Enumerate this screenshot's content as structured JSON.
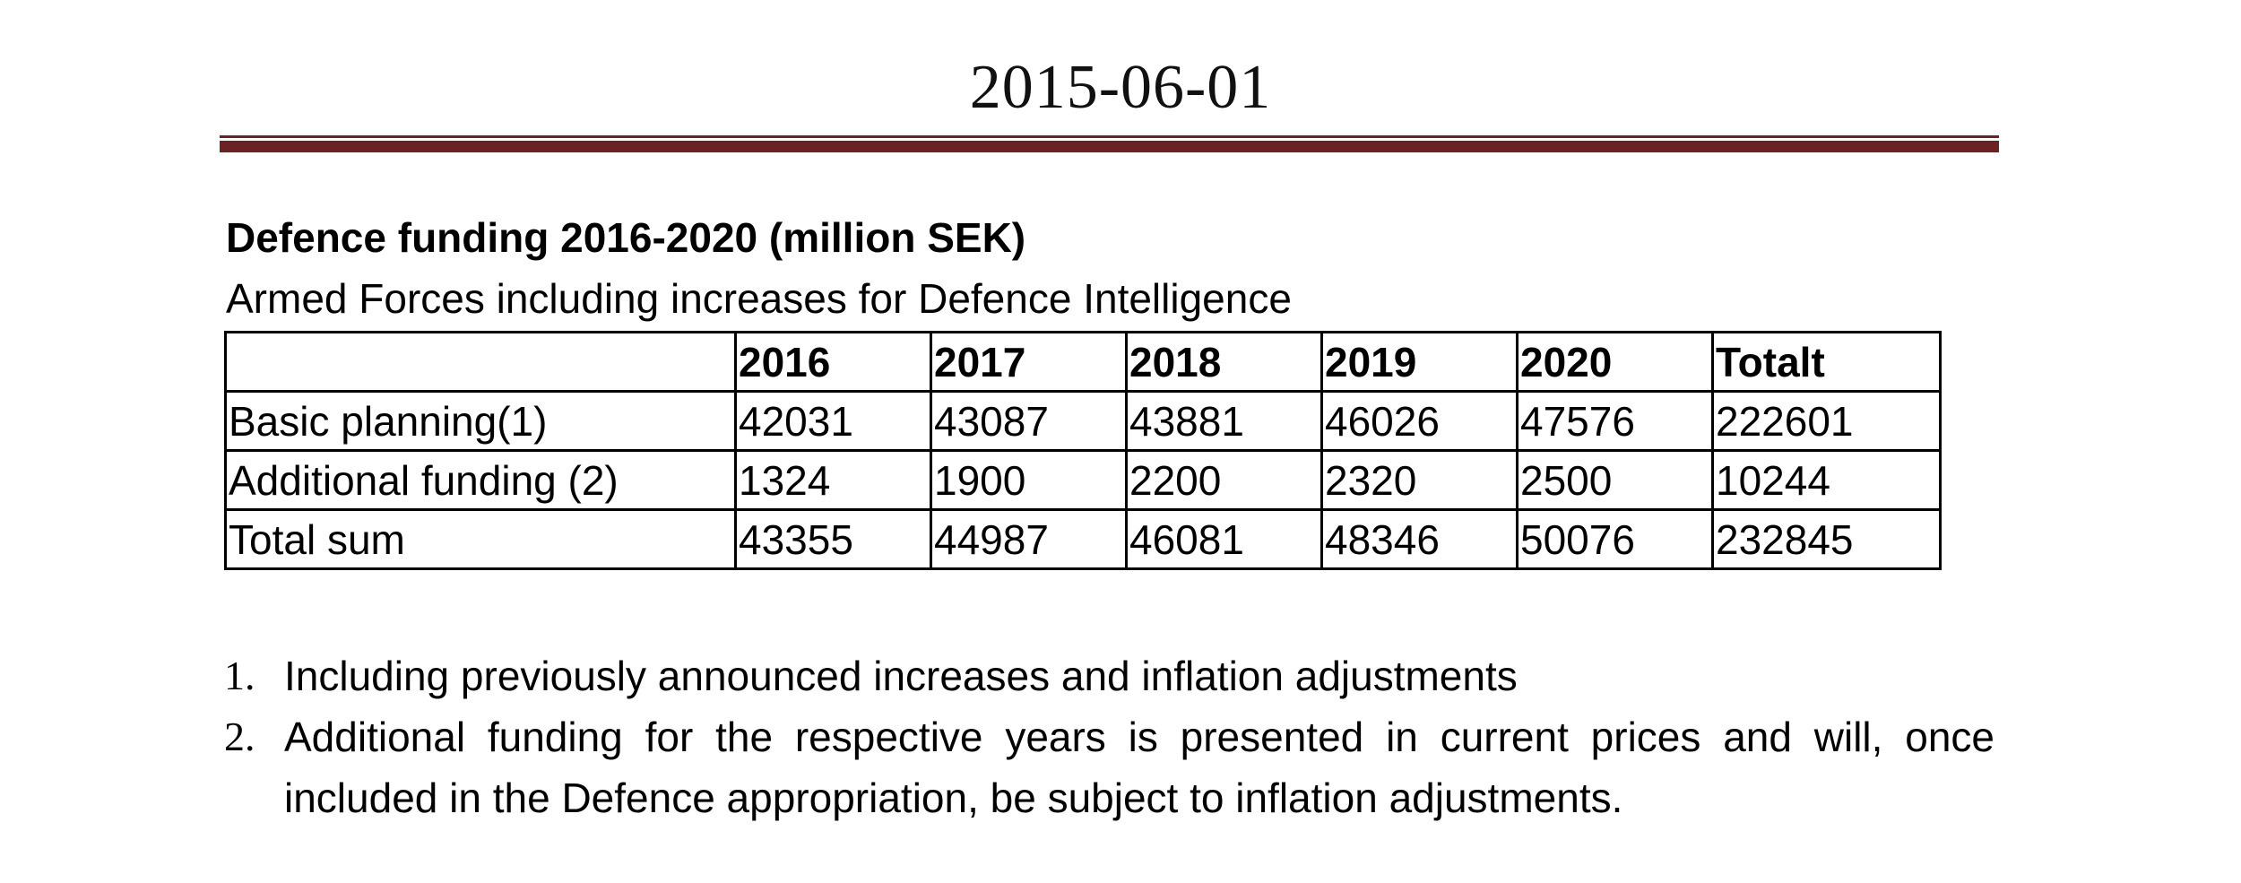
{
  "header": {
    "date": "2015-06-01"
  },
  "document": {
    "title": "Defence funding 2016-2020 (million SEK)",
    "subtitle": "Armed Forces including increases for Defence Intelligence"
  },
  "table": {
    "columns": [
      "",
      "2016",
      "2017",
      "2018",
      "2019",
      "2020",
      "Totalt"
    ],
    "rows": [
      [
        "Basic planning(1)",
        "42031",
        "43087",
        "43881",
        "46026",
        "47576",
        "222601"
      ],
      [
        "Additional funding (2)",
        "1324",
        "1900",
        "2200",
        "2320",
        "2500",
        "10244"
      ],
      [
        "Total sum",
        "43355",
        "44987",
        "46081",
        "48346",
        "50076",
        "232845"
      ]
    ]
  },
  "notes": [
    {
      "number": "1.",
      "text": "Including previously announced increases and inflation adjustments"
    },
    {
      "number": "2.",
      "text": "Additional funding for the respective years is presented in current prices and will, once included in the Defence appropriation, be subject to inflation adjustments."
    }
  ],
  "colors": {
    "header_rule": "#6b2223"
  }
}
